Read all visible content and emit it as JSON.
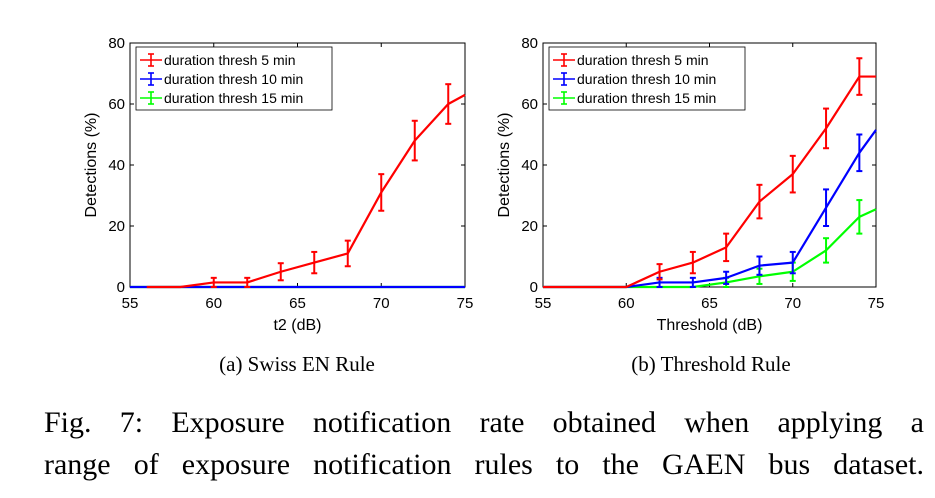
{
  "caption": {
    "line1": "Fig. 7: Exposure notification rate obtained when applying a",
    "line2": "range of exposure notification rules to the GAEN bus dataset."
  },
  "chart_data": [
    {
      "type": "line",
      "subcaption": "(a) Swiss EN Rule",
      "xlabel": "t2 (dB)",
      "ylabel": "Detections (%)",
      "xlim": [
        55,
        75
      ],
      "ylim": [
        0,
        80
      ],
      "xticks": [
        "55",
        "60",
        "65",
        "70",
        "75"
      ],
      "yticks": [
        "0",
        "20",
        "40",
        "60",
        "80"
      ],
      "legend_position": "top-left",
      "grid": false,
      "series": [
        {
          "name": "duration thresh 5 min",
          "color": "#ff0000",
          "x": [
            56,
            58,
            60,
            62,
            64,
            66,
            68,
            70,
            72,
            74,
            75
          ],
          "y": [
            0,
            0,
            1.5,
            1.5,
            5,
            8,
            11,
            31,
            48,
            60,
            63
          ],
          "err": [
            0,
            0,
            1.5,
            1.5,
            2.8,
            3.5,
            4.2,
            6,
            6.5,
            6.5,
            0
          ]
        },
        {
          "name": "duration thresh 10 min",
          "color": "#0000ff",
          "x": [
            55,
            75
          ],
          "y": [
            0,
            0
          ],
          "err": [
            0,
            0
          ]
        },
        {
          "name": "duration thresh 15 min",
          "color": "#00ff00",
          "x": [
            55,
            75
          ],
          "y": [
            0,
            0
          ],
          "err": [
            0,
            0
          ]
        }
      ]
    },
    {
      "type": "line",
      "subcaption": "(b) Threshold Rule",
      "xlabel": "Threshold (dB)",
      "ylabel": "Detections (%)",
      "xlim": [
        55,
        75
      ],
      "ylim": [
        0,
        80
      ],
      "xticks": [
        "55",
        "60",
        "65",
        "70",
        "75"
      ],
      "yticks": [
        "0",
        "20",
        "40",
        "60",
        "80"
      ],
      "legend_position": "top-left",
      "grid": false,
      "series": [
        {
          "name": "duration thresh 5 min",
          "color": "#ff0000",
          "x": [
            55,
            60,
            62,
            64,
            66,
            68,
            70,
            72,
            74,
            75
          ],
          "y": [
            0,
            0,
            5,
            8,
            13,
            28,
            37,
            52,
            69,
            69
          ],
          "err": [
            0,
            0,
            2.5,
            3.5,
            4.5,
            5.5,
            6,
            6.5,
            6,
            0
          ]
        },
        {
          "name": "duration thresh 10 min",
          "color": "#0000ff",
          "x": [
            55,
            60,
            62,
            64,
            66,
            68,
            70,
            72,
            74,
            75
          ],
          "y": [
            0,
            0,
            1.5,
            1.5,
            3,
            7,
            8,
            26,
            44,
            51.5
          ],
          "err": [
            0,
            0,
            1.5,
            1.5,
            2,
            3,
            3.5,
            6,
            6,
            0
          ]
        },
        {
          "name": "duration thresh 15 min",
          "color": "#00ff00",
          "x": [
            55,
            64,
            66,
            68,
            70,
            72,
            74,
            75
          ],
          "y": [
            0,
            0,
            1.5,
            3.5,
            5,
            12,
            23,
            25.5
          ],
          "err": [
            0,
            0,
            1.5,
            2.5,
            3,
            4,
            5.5,
            0
          ]
        }
      ]
    }
  ]
}
